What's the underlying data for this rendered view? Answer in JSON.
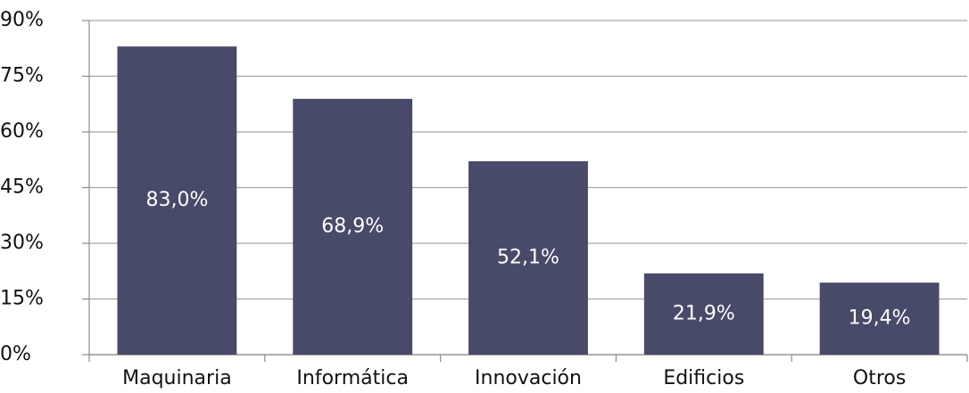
{
  "chart_data": {
    "type": "bar",
    "categories": [
      "Maquinaria",
      "Informática",
      "Innovación",
      "Edificios",
      "Otros"
    ],
    "values": [
      83.0,
      68.9,
      52.1,
      21.9,
      19.4
    ],
    "value_labels": [
      "83,0%",
      "68,9%",
      "52,1%",
      "21,9%",
      "19,4%"
    ],
    "color": "#474a68",
    "ylim": [
      0,
      90
    ],
    "yticks": [
      {
        "value": 0,
        "label": "0%"
      },
      {
        "value": 15,
        "label": "15%"
      },
      {
        "value": 30,
        "label": "30%"
      },
      {
        "value": 45,
        "label": "45%"
      },
      {
        "value": 60,
        "label": "60%"
      },
      {
        "value": 75,
        "label": "75%"
      },
      {
        "value": 90,
        "label": "90%"
      }
    ],
    "grid": true
  }
}
